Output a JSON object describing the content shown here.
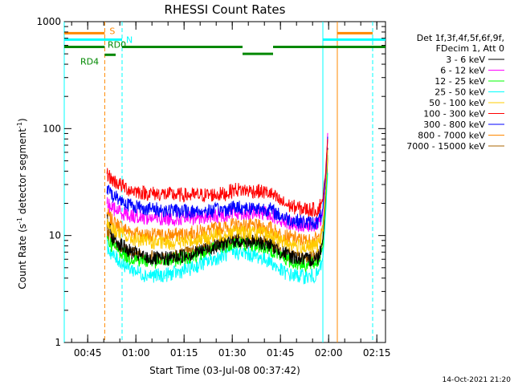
{
  "chart_data": {
    "type": "line",
    "title": "RHESSI Count Rates",
    "xlabel": "Start Time (03-Jul-08 00:37:42)",
    "ylabel_main": "Count Rate (s",
    "ylabel_sup1": "-1",
    "ylabel_mid": " detector segment",
    "ylabel_sup2": "-1",
    "ylabel_end": ")",
    "y_scale": "log",
    "ylim": [
      1,
      1000
    ],
    "y_ticks": [
      {
        "value": 1,
        "label": "1"
      },
      {
        "value": 10,
        "label": "10"
      },
      {
        "value": 100,
        "label": "100"
      },
      {
        "value": 1000,
        "label": "1000"
      }
    ],
    "x_unit": "minutes since 00:37:42",
    "xlim": [
      0,
      100
    ],
    "x_ticks": [
      {
        "value": 7.3,
        "label": "00:45"
      },
      {
        "value": 22.3,
        "label": "01:00"
      },
      {
        "value": 37.3,
        "label": "01:15"
      },
      {
        "value": 52.3,
        "label": "01:30"
      },
      {
        "value": 67.3,
        "label": "01:45"
      },
      {
        "value": 82.3,
        "label": "02:00"
      },
      {
        "value": 97.3,
        "label": "02:15"
      }
    ],
    "x_minor_step": 5,
    "legend_header": [
      "Det 1f,3f,4f,5f,6f,9f,",
      "FDecim 1, Att 0"
    ],
    "legend_position": "right",
    "data_start": 13.3,
    "data_end": 82.0,
    "series": [
      {
        "name": "3 - 6 keV",
        "color": "#000000",
        "values": [
          [
            13.3,
            14.0
          ],
          [
            15,
            9.5
          ],
          [
            20,
            7.2
          ],
          [
            25,
            6.2
          ],
          [
            30,
            6.0
          ],
          [
            35,
            6.3
          ],
          [
            40,
            6.8
          ],
          [
            45,
            7.6
          ],
          [
            50,
            8.5
          ],
          [
            53,
            9.0
          ],
          [
            56,
            8.8
          ],
          [
            60,
            8.6
          ],
          [
            64,
            8.2
          ],
          [
            67,
            7.2
          ],
          [
            70,
            6.5
          ],
          [
            73,
            6.1
          ],
          [
            76,
            5.9
          ],
          [
            79,
            6.2
          ],
          [
            80.5,
            9.0
          ],
          [
            81.5,
            30
          ],
          [
            82.0,
            70
          ]
        ]
      },
      {
        "name": "6 - 12 keV",
        "color": "#ff00ff",
        "values": [
          [
            13.3,
            20
          ],
          [
            15,
            18
          ],
          [
            20,
            15.5
          ],
          [
            25,
            14.8
          ],
          [
            30,
            14.4
          ],
          [
            35,
            14.4
          ],
          [
            40,
            14.6
          ],
          [
            45,
            15.0
          ],
          [
            50,
            15.6
          ],
          [
            53,
            16.5
          ],
          [
            56,
            16.2
          ],
          [
            60,
            16.2
          ],
          [
            64,
            16.0
          ],
          [
            67,
            14.2
          ],
          [
            70,
            13.2
          ],
          [
            73,
            12.8
          ],
          [
            76,
            12.4
          ],
          [
            79,
            12.6
          ],
          [
            80.5,
            16
          ],
          [
            81.5,
            40
          ],
          [
            82.0,
            90
          ]
        ]
      },
      {
        "name": "12 - 25 keV",
        "color": "#00ff00",
        "values": [
          [
            13.3,
            9.5
          ],
          [
            15,
            8.0
          ],
          [
            20,
            6.3
          ],
          [
            25,
            5.8
          ],
          [
            30,
            5.7
          ],
          [
            35,
            6.0
          ],
          [
            40,
            6.5
          ],
          [
            45,
            7.2
          ],
          [
            50,
            8.0
          ],
          [
            53,
            8.6
          ],
          [
            56,
            8.4
          ],
          [
            60,
            8.1
          ],
          [
            64,
            7.6
          ],
          [
            67,
            6.5
          ],
          [
            70,
            5.8
          ],
          [
            73,
            5.5
          ],
          [
            76,
            5.3
          ],
          [
            79,
            5.6
          ],
          [
            80.5,
            8.0
          ],
          [
            81.5,
            25
          ],
          [
            82.0,
            55
          ]
        ]
      },
      {
        "name": "25 - 50 keV",
        "color": "#00ffff",
        "values": [
          [
            13.3,
            8.0
          ],
          [
            15,
            6.5
          ],
          [
            20,
            5.0
          ],
          [
            25,
            4.3
          ],
          [
            30,
            4.2
          ],
          [
            35,
            4.5
          ],
          [
            40,
            5.0
          ],
          [
            45,
            5.8
          ],
          [
            50,
            6.6
          ],
          [
            53,
            7.0
          ],
          [
            56,
            6.8
          ],
          [
            60,
            6.4
          ],
          [
            64,
            5.8
          ],
          [
            67,
            4.8
          ],
          [
            70,
            4.3
          ],
          [
            73,
            4.2
          ],
          [
            76,
            4.1
          ],
          [
            79,
            4.3
          ],
          [
            80.5,
            6.0
          ],
          [
            81.5,
            18
          ],
          [
            82.0,
            40
          ]
        ]
      },
      {
        "name": "50 - 100 keV",
        "color": "#ffcc00",
        "values": [
          [
            13.3,
            13
          ],
          [
            15,
            11.5
          ],
          [
            20,
            9.5
          ],
          [
            25,
            8.8
          ],
          [
            30,
            8.5
          ],
          [
            35,
            8.6
          ],
          [
            40,
            9.0
          ],
          [
            45,
            9.6
          ],
          [
            50,
            10.4
          ],
          [
            53,
            11.0
          ],
          [
            56,
            10.8
          ],
          [
            60,
            10.6
          ],
          [
            64,
            10.2
          ],
          [
            67,
            9.0
          ],
          [
            70,
            8.4
          ],
          [
            73,
            8.0
          ],
          [
            76,
            7.8
          ],
          [
            79,
            8.1
          ],
          [
            80.5,
            11
          ],
          [
            81.5,
            30
          ],
          [
            82.0,
            60
          ]
        ]
      },
      {
        "name": "100 - 300 keV",
        "color": "#ff0000",
        "values": [
          [
            13.3,
            38
          ],
          [
            15,
            33
          ],
          [
            20,
            27
          ],
          [
            25,
            25
          ],
          [
            30,
            24.5
          ],
          [
            35,
            24
          ],
          [
            40,
            23.8
          ],
          [
            45,
            24
          ],
          [
            50,
            24.5
          ],
          [
            53,
            27
          ],
          [
            56,
            26.5
          ],
          [
            60,
            26
          ],
          [
            64,
            25
          ],
          [
            67,
            21
          ],
          [
            70,
            19
          ],
          [
            73,
            18
          ],
          [
            76,
            17.5
          ],
          [
            79,
            17.5
          ],
          [
            80.5,
            22
          ],
          [
            81.5,
            45
          ],
          [
            82.0,
            80
          ]
        ]
      },
      {
        "name": "300 - 800 keV",
        "color": "#0000ff",
        "values": [
          [
            13.3,
            27
          ],
          [
            15,
            24
          ],
          [
            20,
            19.5
          ],
          [
            25,
            18
          ],
          [
            30,
            17.3
          ],
          [
            35,
            17.0
          ],
          [
            40,
            16.8
          ],
          [
            45,
            17.0
          ],
          [
            50,
            17.5
          ],
          [
            53,
            18.5
          ],
          [
            56,
            18.2
          ],
          [
            60,
            18.0
          ],
          [
            64,
            17.6
          ],
          [
            67,
            15.5
          ],
          [
            70,
            14.2
          ],
          [
            73,
            13.6
          ],
          [
            76,
            13.1
          ],
          [
            79,
            13.3
          ],
          [
            80.5,
            17
          ],
          [
            81.5,
            40
          ],
          [
            82.0,
            85
          ]
        ]
      },
      {
        "name": "800 - 7000 keV",
        "color": "#ff8800",
        "values": [
          [
            13.3,
            16
          ],
          [
            15,
            13.5
          ],
          [
            20,
            11.0
          ],
          [
            25,
            10.2
          ],
          [
            30,
            10.0
          ],
          [
            35,
            10.2
          ],
          [
            40,
            10.6
          ],
          [
            45,
            11.2
          ],
          [
            50,
            12.0
          ],
          [
            53,
            12.6
          ],
          [
            56,
            12.4
          ],
          [
            60,
            12.2
          ],
          [
            64,
            11.8
          ],
          [
            67,
            10.4
          ],
          [
            70,
            9.6
          ],
          [
            73,
            9.2
          ],
          [
            76,
            8.9
          ],
          [
            79,
            9.3
          ],
          [
            80.5,
            12
          ],
          [
            81.5,
            30
          ],
          [
            82.0,
            55
          ]
        ]
      },
      {
        "name": "7000 - 15000 keV",
        "color": "#aa6600",
        "values": [
          [
            13.3,
            11
          ],
          [
            15,
            9.0
          ],
          [
            20,
            7.0
          ],
          [
            25,
            6.4
          ],
          [
            30,
            6.2
          ],
          [
            35,
            6.5
          ],
          [
            40,
            7.0
          ],
          [
            45,
            7.8
          ],
          [
            50,
            8.7
          ],
          [
            53,
            9.2
          ],
          [
            56,
            9.0
          ],
          [
            60,
            8.8
          ],
          [
            64,
            8.3
          ],
          [
            67,
            7.3
          ],
          [
            70,
            6.6
          ],
          [
            73,
            6.2
          ],
          [
            76,
            6.0
          ],
          [
            79,
            6.4
          ],
          [
            80.5,
            9.0
          ],
          [
            81.5,
            25
          ],
          [
            82.0,
            50
          ]
        ]
      }
    ],
    "vertical_lines": [
      {
        "x": 12.6,
        "color": "#ff8800",
        "style": "dashed"
      },
      {
        "x": 18.0,
        "color": "#00ffff",
        "style": "dashed"
      },
      {
        "x": 0.0,
        "color": "#00ffff",
        "style": "solid"
      },
      {
        "x": 80.5,
        "color": "#00ffff",
        "style": "solid"
      },
      {
        "x": 85.0,
        "color": "#ff8800",
        "style": "solid"
      },
      {
        "x": 96.0,
        "color": "#ff8800",
        "style": "dashed"
      },
      {
        "x": 96.0,
        "color": "#00ffff",
        "style": "dashed"
      }
    ],
    "state_bars": [
      {
        "label": "S",
        "color": "#ff8800",
        "value": 780,
        "segments": [
          [
            0,
            12.6
          ],
          [
            85.0,
            96.0
          ]
        ]
      },
      {
        "label": "N",
        "color": "#00ffff",
        "value": 680,
        "segments": [
          [
            0,
            18.0
          ],
          [
            80.5,
            100
          ]
        ]
      },
      {
        "label": "RD0",
        "color": "#008800",
        "value": 580,
        "segments": [
          [
            0,
            12.6
          ],
          [
            18.0,
            55.5
          ],
          [
            65.0,
            100
          ]
        ]
      },
      {
        "label": "",
        "color": "#008800",
        "value": 500,
        "segments": [
          [
            55.5,
            65.0
          ]
        ]
      },
      {
        "label": "RD4",
        "color": "#008800",
        "value": 490,
        "segments": [
          [
            12.6,
            16.0
          ]
        ]
      }
    ],
    "timestamp": "14-Oct-2021 21:20"
  }
}
